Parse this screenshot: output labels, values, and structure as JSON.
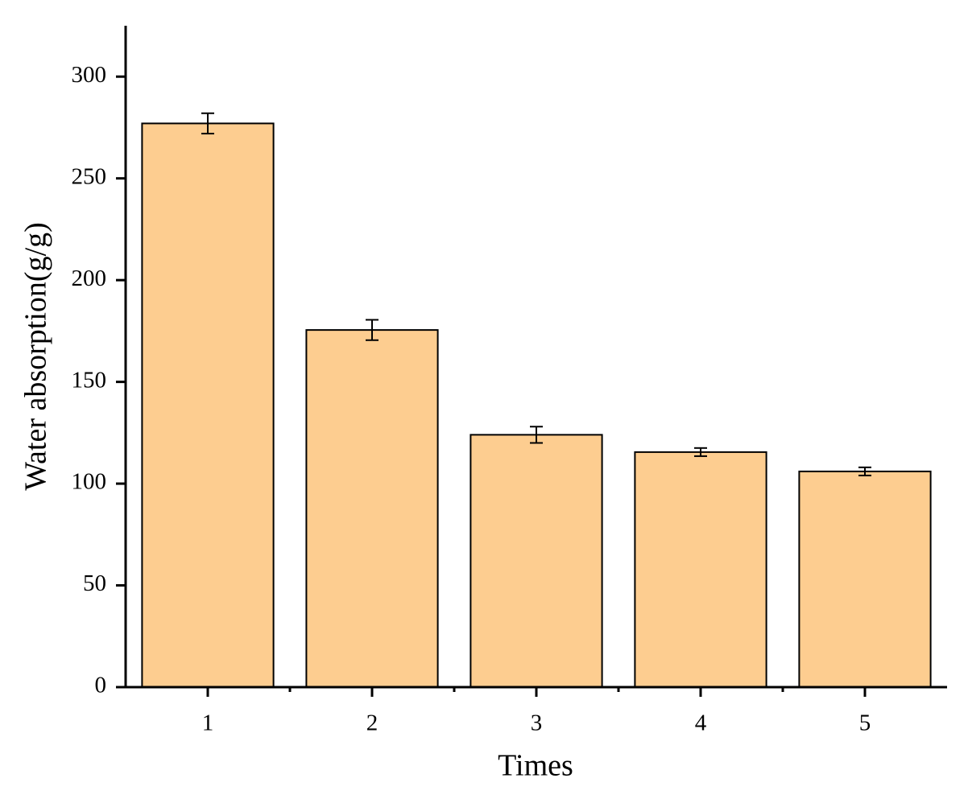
{
  "chart_data": {
    "type": "bar",
    "x_label": "Times",
    "y_label": "Water absorption(g/g)",
    "categories": [
      "1",
      "2",
      "3",
      "4",
      "5"
    ],
    "values": [
      277,
      175.5,
      124,
      115.5,
      106
    ],
    "errors": [
      5,
      5,
      4,
      2,
      2
    ],
    "color": "#fdcd90",
    "ylim": [
      0,
      325
    ],
    "yticks": [
      0,
      50,
      100,
      150,
      200,
      250,
      300
    ]
  }
}
